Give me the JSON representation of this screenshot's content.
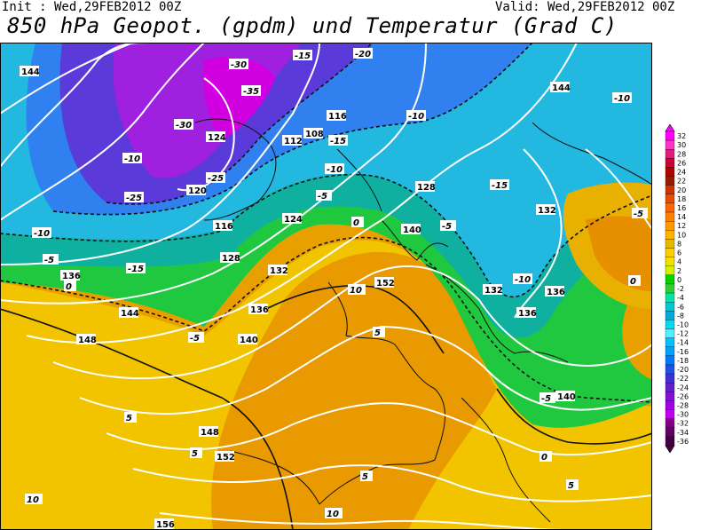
{
  "header": {
    "init": "Init : Wed,29FEB2012 00Z",
    "valid": "Valid: Wed,29FEB2012 00Z",
    "title": "850 hPa Geopot. (gpdm) und Temperatur (Grad C)"
  },
  "legend": {
    "values": [
      "32",
      "30",
      "28",
      "26",
      "24",
      "22",
      "20",
      "18",
      "16",
      "14",
      "12",
      "10",
      "8",
      "6",
      "4",
      "2",
      "0",
      "-2",
      "-4",
      "-6",
      "-8",
      "-10",
      "-12",
      "-14",
      "-16",
      "-18",
      "-20",
      "-22",
      "-24",
      "-26",
      "-28",
      "-30",
      "-32",
      "-34",
      "-36"
    ],
    "colors": [
      "#ff00ff",
      "#ff33cc",
      "#e6197f",
      "#cc0033",
      "#b30000",
      "#991a00",
      "#cc3300",
      "#e64d00",
      "#ff6600",
      "#ff8000",
      "#ff9900",
      "#ffb300",
      "#e6b800",
      "#ffcc00",
      "#f0e000",
      "#d2f000",
      "#00d200",
      "#33cc33",
      "#00e6a0",
      "#00c8d2",
      "#00aadc",
      "#00dcf0",
      "#50f0ff",
      "#00c0ff",
      "#00a0ff",
      "#0078ff",
      "#2050e6",
      "#4030d2",
      "#6020c8",
      "#8010d2",
      "#a000e6",
      "#c000f0",
      "#800080",
      "#600060",
      "#400040"
    ]
  },
  "map_labels": {
    "geopotential": [
      "144",
      "136",
      "120",
      "128",
      "124",
      "116",
      "112",
      "108",
      "116",
      "124",
      "128",
      "132",
      "136",
      "140",
      "144",
      "148",
      "152",
      "140",
      "136",
      "132",
      "148",
      "156",
      "152",
      "132",
      "144",
      "136",
      "140"
    ],
    "temperature": [
      "-30",
      "-25",
      "-15",
      "-20",
      "-35",
      "-30",
      "-10",
      "-25",
      "-15",
      "-10",
      "-5",
      "0",
      "-5",
      "-10",
      "-15",
      "-10",
      "-5",
      "5",
      "10",
      "5",
      "0",
      "-5",
      "-10",
      "-15",
      "5",
      "10",
      "5",
      "0",
      "-5",
      "-10",
      "-5",
      "0",
      "5",
      "10"
    ]
  },
  "icons": [
    "colorbar-up-arrow-icon",
    "colorbar-down-arrow-icon"
  ]
}
